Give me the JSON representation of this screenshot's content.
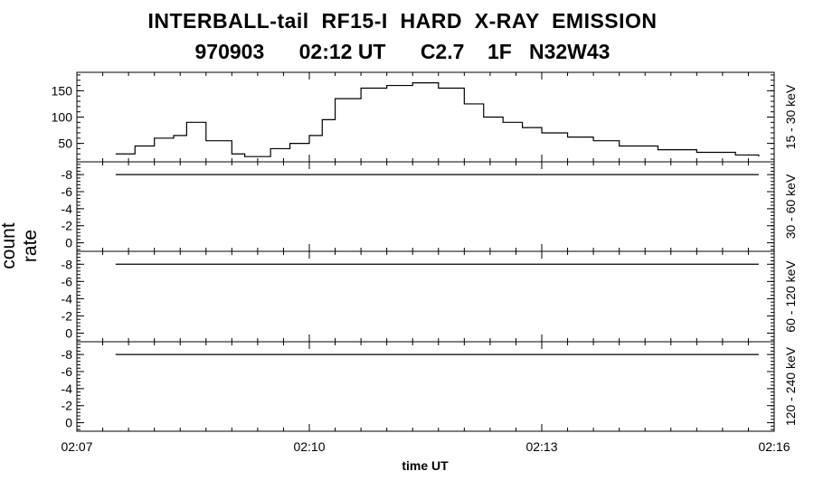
{
  "title_line1": "INTERBALL-tail  RF15-I  HARD  X-RAY  EMISSION",
  "title_line2": "970903      02:12 UT      C2.7    1F   N32W43",
  "ylabel": "count rate",
  "xlabel": "time UT",
  "chart_data": {
    "type": "line",
    "line_style": "step",
    "x_ticks": [
      "02:07",
      "02:10",
      "02:13",
      "02:16"
    ],
    "xlim": [
      "02:07",
      "02:16"
    ],
    "panels": [
      {
        "label": "15 - 30 keV",
        "ylim": [
          15,
          185
        ],
        "yticks": [
          50,
          100,
          150
        ],
        "x": [
          "02:07:30",
          "02:07:45",
          "02:08:00",
          "02:08:15",
          "02:08:25",
          "02:08:40",
          "02:09:00",
          "02:09:10",
          "02:09:30",
          "02:09:45",
          "02:10:00",
          "02:10:10",
          "02:10:20",
          "02:10:40",
          "02:11:00",
          "02:11:20",
          "02:11:40",
          "02:12:00",
          "02:12:15",
          "02:12:30",
          "02:12:45",
          "02:13:00",
          "02:13:20",
          "02:13:40",
          "02:14:00",
          "02:14:30",
          "02:15:00",
          "02:15:30",
          "02:15:48"
        ],
        "values": [
          30,
          45,
          60,
          65,
          90,
          55,
          30,
          25,
          40,
          50,
          65,
          95,
          135,
          155,
          160,
          165,
          155,
          125,
          100,
          90,
          80,
          70,
          62,
          55,
          45,
          38,
          33,
          28,
          25
        ]
      },
      {
        "label": "30 - 60 keV",
        "ylim": [
          1,
          -9.5
        ],
        "yticks": [
          -8,
          -6,
          -4,
          -2,
          0
        ],
        "y_tick_labels": [
          "-8",
          "-6",
          "-4",
          "-2",
          "0"
        ],
        "x": [
          "02:07:30",
          "02:15:48"
        ],
        "values": [
          -8,
          -8
        ]
      },
      {
        "label": "60 - 120 keV",
        "ylim": [
          1,
          -9.5
        ],
        "yticks": [
          -8,
          -6,
          -4,
          -2,
          0
        ],
        "y_tick_labels": [
          "-8",
          "-6",
          "-4",
          "-2",
          "0"
        ],
        "x": [
          "02:07:30",
          "02:15:48"
        ],
        "values": [
          -8,
          -8
        ]
      },
      {
        "label": "120 - 240 keV",
        "ylim": [
          1,
          -9.5
        ],
        "yticks": [
          -8,
          -6,
          -4,
          -2,
          0
        ],
        "y_tick_labels": [
          "-8",
          "-6",
          "-4",
          "-2",
          "0"
        ],
        "x": [
          "02:07:30",
          "02:15:48"
        ],
        "values": [
          -8,
          -8
        ]
      }
    ]
  }
}
